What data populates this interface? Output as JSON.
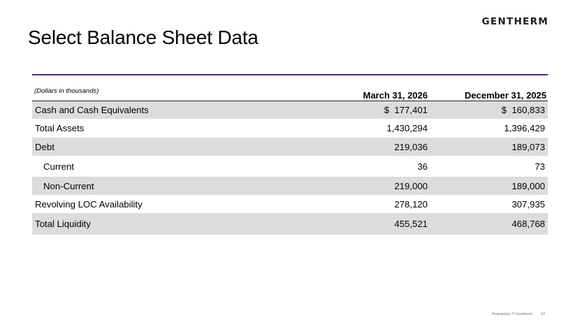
{
  "brand": {
    "logo_text": "GENTHERM"
  },
  "slide": {
    "title": "Select Balance Sheet Data"
  },
  "table": {
    "note": "(Dollars in thousands)",
    "col1_header": "March 31, 2026",
    "col2_header": "December 31, 2025",
    "rows": [
      {
        "label": "Cash and Cash Equivalents",
        "v1": "$  177,401",
        "v2": "$  160,833"
      },
      {
        "label": "Total Assets",
        "v1": "1,430,294",
        "v2": "1,396,429"
      },
      {
        "label": "Debt",
        "v1": "219,036",
        "v2": "189,073"
      },
      {
        "label": "Current",
        "v1": "36",
        "v2": "73"
      },
      {
        "label": "Non-Current",
        "v1": "219,000",
        "v2": "189,000"
      },
      {
        "label": "Revolving LOC Availability",
        "v1": "278,120",
        "v2": "307,935"
      },
      {
        "label": "Total Liquidity",
        "v1": "455,521",
        "v2": "468,768"
      }
    ]
  },
  "footer": {
    "text": "Proprietary © Gentherm",
    "page": "14"
  },
  "colors": {
    "accent_rule": "#4b2a8c",
    "row_shade": "#dcdcdc"
  }
}
